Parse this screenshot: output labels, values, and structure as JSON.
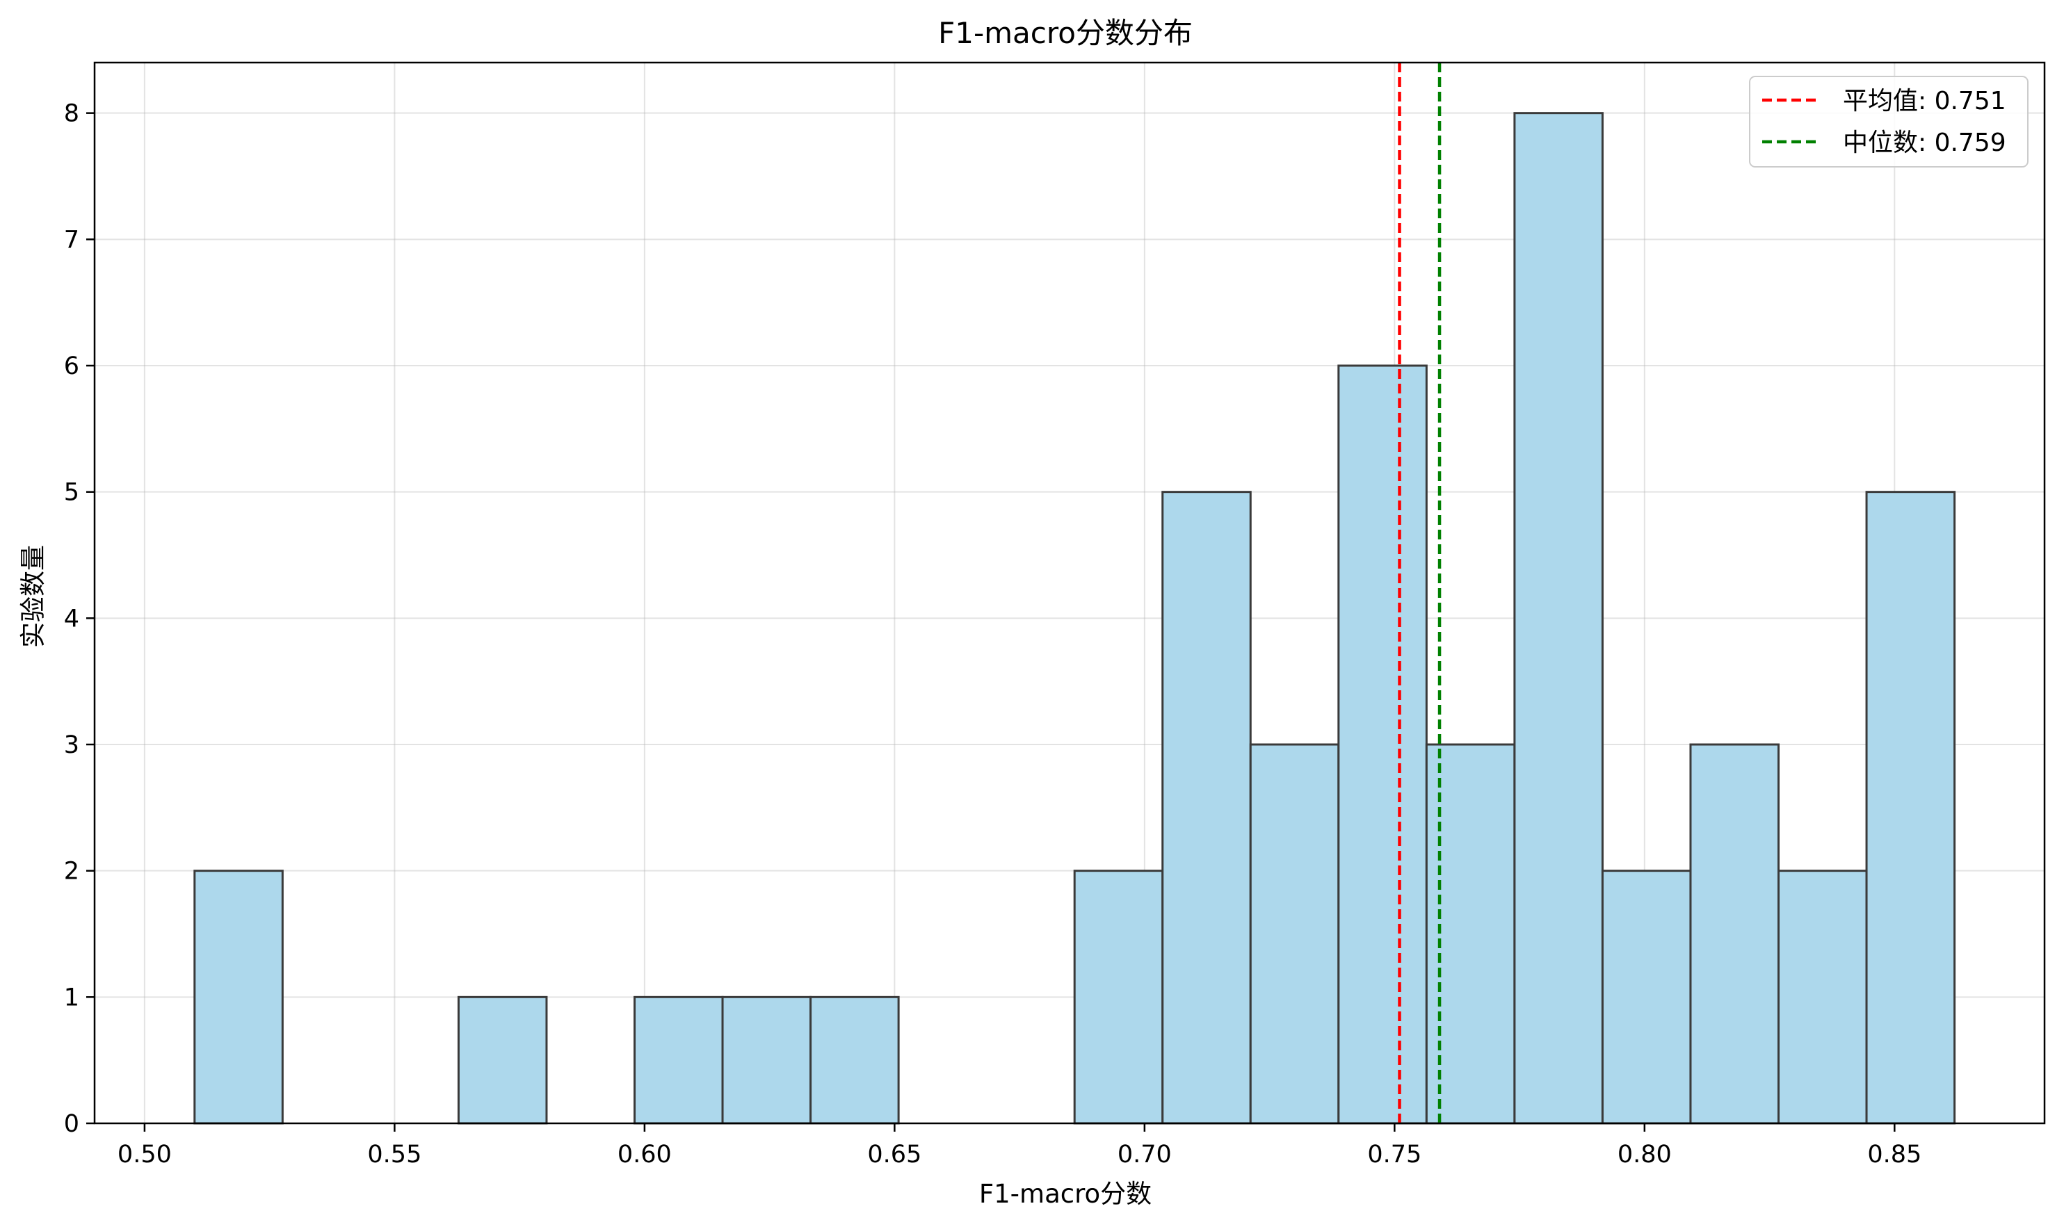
{
  "chart_data": {
    "type": "bar",
    "title": "F1-macro分数分布",
    "xlabel": "F1-macro分数",
    "ylabel": "实验数量",
    "xlim": [
      0.49,
      0.88
    ],
    "ylim": [
      0,
      8.4
    ],
    "xticks": [
      0.5,
      0.55,
      0.6,
      0.65,
      0.7,
      0.75,
      0.8,
      0.85
    ],
    "xtick_labels": [
      "0.50",
      "0.55",
      "0.60",
      "0.65",
      "0.70",
      "0.75",
      "0.80",
      "0.85"
    ],
    "yticks": [
      0,
      1,
      2,
      3,
      4,
      5,
      6,
      7,
      8
    ],
    "ytick_labels": [
      "0",
      "1",
      "2",
      "3",
      "4",
      "5",
      "6",
      "7",
      "8"
    ],
    "grid": true,
    "legend_position": "top-right",
    "bin_edges": [
      0.51,
      0.5276,
      0.5452,
      0.5628,
      0.5804,
      0.598,
      0.6156,
      0.6332,
      0.6508,
      0.6684,
      0.686,
      0.7036,
      0.7212,
      0.7388,
      0.7564,
      0.774,
      0.7916,
      0.8092,
      0.8268,
      0.8444,
      0.862
    ],
    "counts": [
      2,
      0,
      0,
      1,
      0,
      1,
      1,
      1,
      0,
      0,
      2,
      5,
      3,
      6,
      3,
      8,
      2,
      3,
      2,
      5
    ],
    "bar_color": "#add8ec",
    "bar_edge_color": "#3a3a3a",
    "reference_lines": [
      {
        "name": "平均值: 0.751",
        "value": 0.751,
        "color": "#ff0000",
        "style": "dashed"
      },
      {
        "name": "中位数: 0.759",
        "value": 0.759,
        "color": "#008000",
        "style": "dashed"
      }
    ]
  }
}
